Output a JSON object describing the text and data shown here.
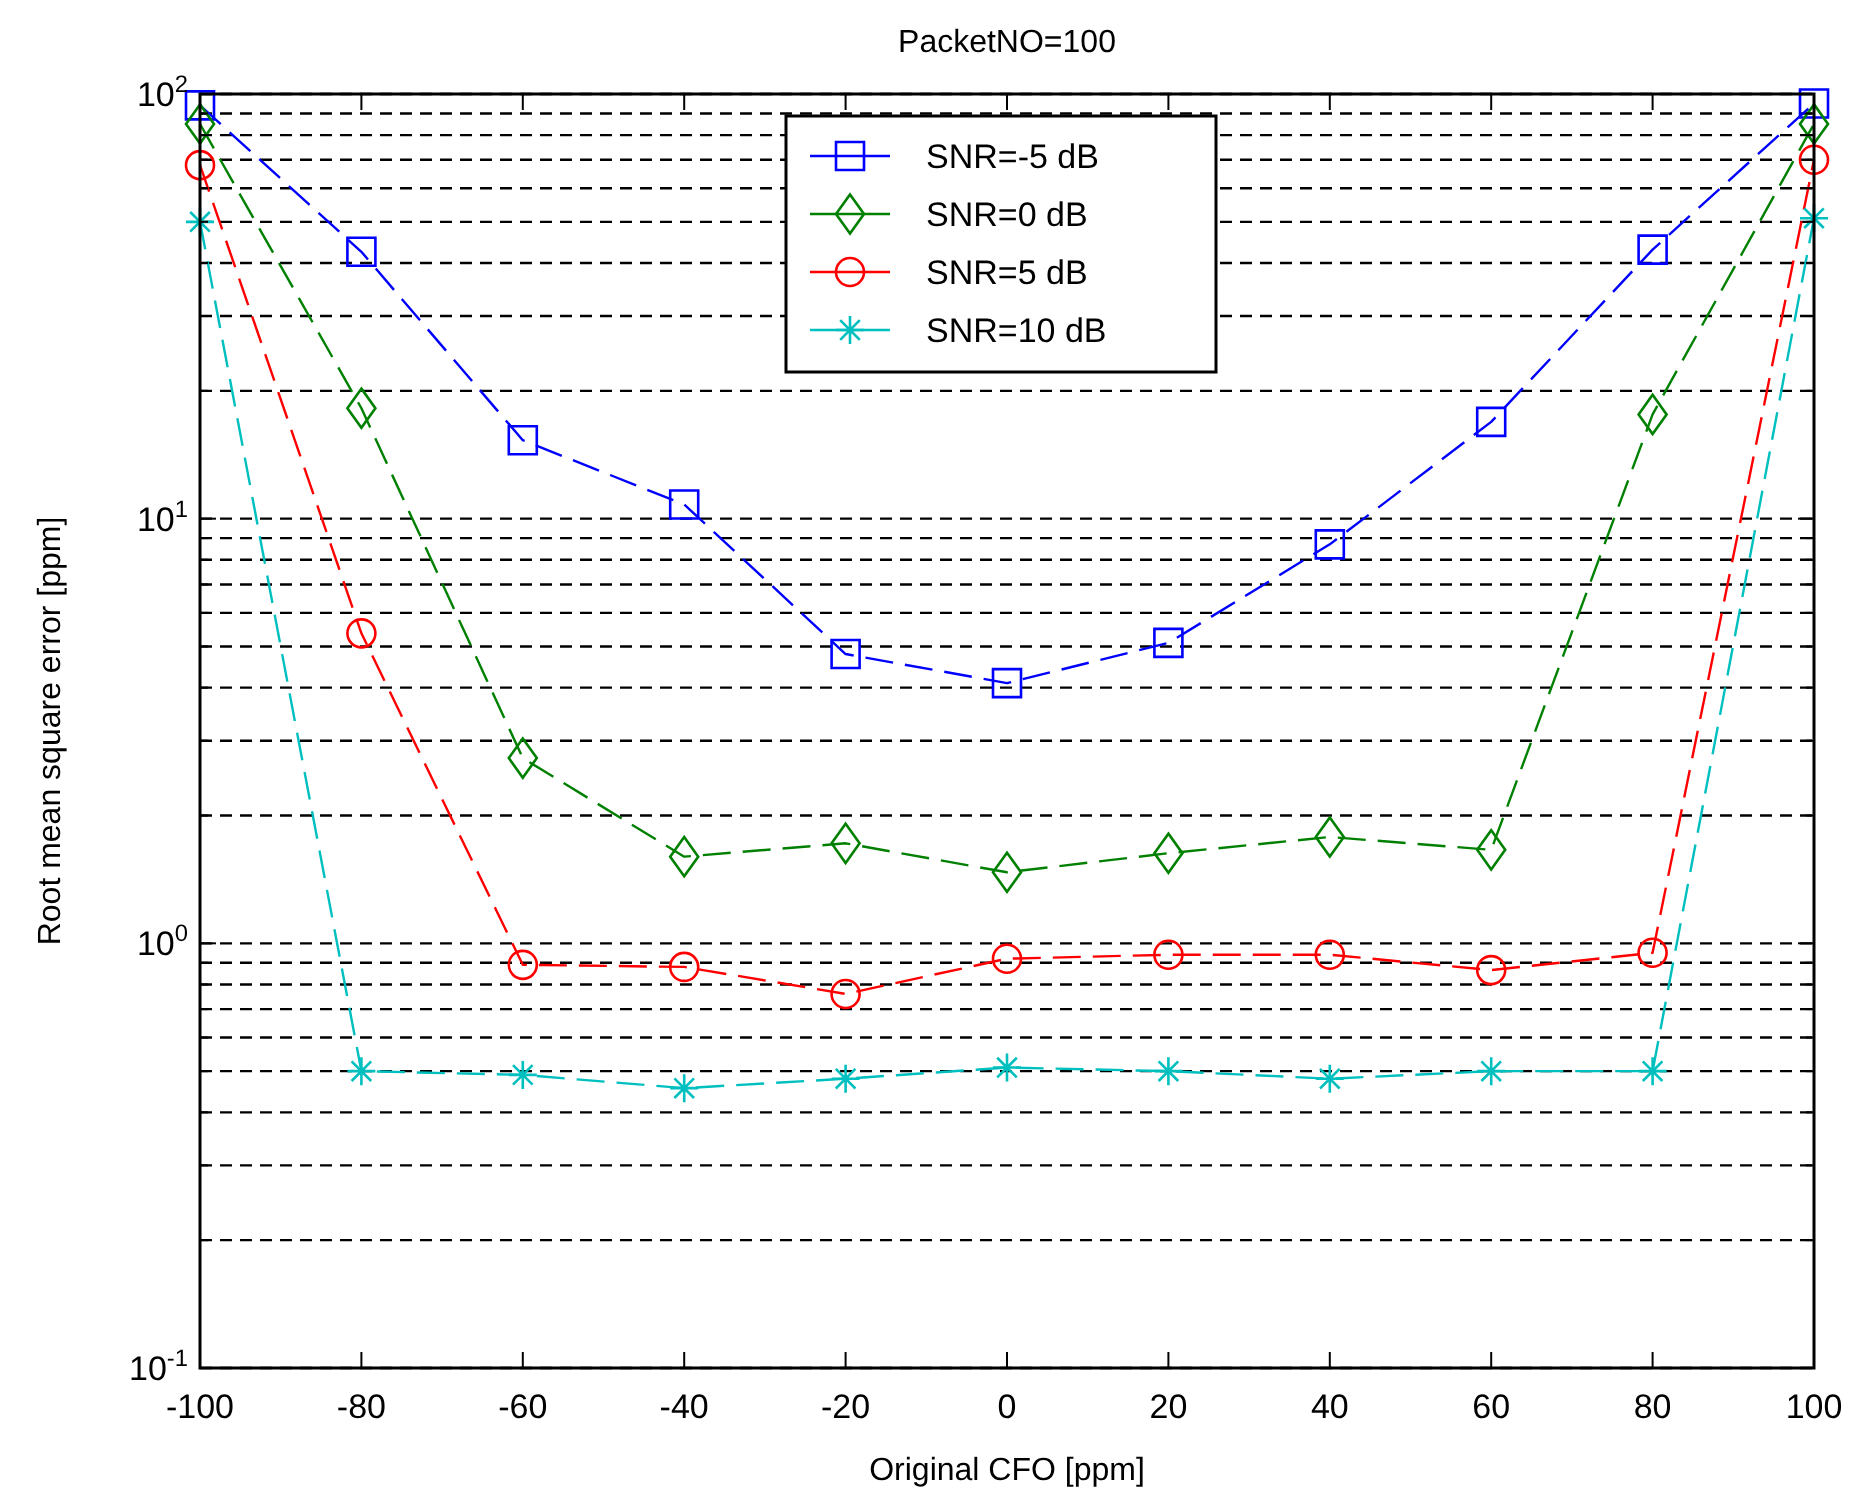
{
  "chart_data": {
    "type": "line",
    "title": "PacketNO=100",
    "xlabel": "Original CFO [ppm]",
    "ylabel": "Root mean square error [ppm]",
    "log": "y",
    "grid": "y",
    "legend": "top",
    "line_style": "dashed",
    "x": [
      -100,
      -80,
      -60,
      -40,
      -20,
      0,
      20,
      40,
      60,
      80,
      100
    ],
    "xlim": [
      -100,
      100
    ],
    "xticks": [
      -100,
      -80,
      -60,
      -40,
      -20,
      0,
      20,
      40,
      60,
      80,
      100
    ],
    "ylim": [
      0.1,
      100
    ],
    "yticks": [
      {
        "value": 0.1,
        "label": "10$^{-1}$"
      },
      {
        "value": 0.2,
        "label": null
      },
      {
        "value": 0.3,
        "label": null
      },
      {
        "value": 0.4,
        "label": null
      },
      {
        "value": 0.5,
        "label": null
      },
      {
        "value": 0.6,
        "label": null
      },
      {
        "value": 0.7,
        "label": null
      },
      {
        "value": 0.8,
        "label": null
      },
      {
        "value": 0.9,
        "label": null
      },
      {
        "value": 1,
        "label": "10$^{0}$"
      },
      {
        "value": 2,
        "label": null
      },
      {
        "value": 3,
        "label": null
      },
      {
        "value": 4,
        "label": null
      },
      {
        "value": 5,
        "label": null
      },
      {
        "value": 6,
        "label": null
      },
      {
        "value": 7,
        "label": null
      },
      {
        "value": 8,
        "label": null
      },
      {
        "value": 9,
        "label": null
      },
      {
        "value": 10,
        "label": "10$^{1}$"
      },
      {
        "value": 20,
        "label": null
      },
      {
        "value": 30,
        "label": null
      },
      {
        "value": 40,
        "label": null
      },
      {
        "value": 50,
        "label": null
      },
      {
        "value": 60,
        "label": null
      },
      {
        "value": 70,
        "label": null
      },
      {
        "value": 80,
        "label": null
      },
      {
        "value": 90,
        "label": null
      },
      {
        "value": 100,
        "label": "10$^{2}$"
      }
    ],
    "series": [
      {
        "name": "SNR=-5 dB",
        "color": "#0000ff",
        "marker": "square",
        "values": [
          94,
          42.5,
          15.3,
          10.8,
          4.8,
          4.1,
          5.1,
          8.7,
          16.9,
          43,
          95
        ]
      },
      {
        "name": "SNR=0 dB",
        "color": "#008000",
        "marker": "diamond",
        "values": [
          85,
          18.2,
          2.73,
          1.6,
          1.72,
          1.47,
          1.63,
          1.78,
          1.66,
          17.6,
          85
        ]
      },
      {
        "name": "SNR=5 dB",
        "color": "#ff0000",
        "marker": "circle",
        "values": [
          68,
          5.37,
          0.89,
          0.88,
          0.76,
          0.92,
          0.94,
          0.94,
          0.865,
          0.95,
          70
        ]
      },
      {
        "name": "SNR=10 dB",
        "color": "#00bfbf",
        "marker": "cross",
        "values": [
          50,
          0.5,
          0.49,
          0.456,
          0.48,
          0.51,
          0.5,
          0.48,
          0.5,
          0.5,
          51
        ]
      }
    ]
  }
}
